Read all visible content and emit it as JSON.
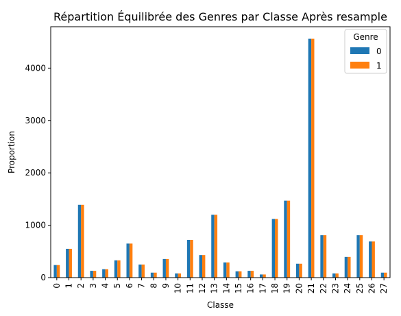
{
  "chart_data": {
    "type": "bar",
    "title": "Répartition Équilibrée des Genres par Classe Après resample",
    "xlabel": "Classe",
    "ylabel": "Proportion",
    "categories": [
      "0",
      "1",
      "2",
      "3",
      "4",
      "5",
      "6",
      "7",
      "8",
      "9",
      "10",
      "11",
      "12",
      "13",
      "14",
      "15",
      "16",
      "17",
      "18",
      "19",
      "20",
      "21",
      "22",
      "23",
      "24",
      "25",
      "26",
      "27"
    ],
    "series": [
      {
        "name": "0",
        "color": "#1f77b4",
        "values": [
          240,
          550,
          1390,
          130,
          160,
          330,
          650,
          250,
          95,
          355,
          80,
          720,
          430,
          1200,
          290,
          120,
          130,
          60,
          1120,
          1470,
          265,
          4560,
          810,
          80,
          395,
          810,
          690,
          95
        ]
      },
      {
        "name": "1",
        "color": "#ff7f0e",
        "values": [
          240,
          550,
          1390,
          130,
          160,
          330,
          650,
          250,
          95,
          355,
          80,
          720,
          430,
          1200,
          290,
          120,
          130,
          60,
          1120,
          1470,
          265,
          4560,
          810,
          80,
          395,
          810,
          690,
          95
        ]
      }
    ],
    "ylim": [
      0,
      4790
    ],
    "yticks": [
      0,
      1000,
      2000,
      3000,
      4000
    ],
    "ytick_labels": [
      "0",
      "1000",
      "2000",
      "3000",
      "4000"
    ],
    "legend": {
      "title": "Genre",
      "placement": "top-right"
    },
    "grid": false
  }
}
